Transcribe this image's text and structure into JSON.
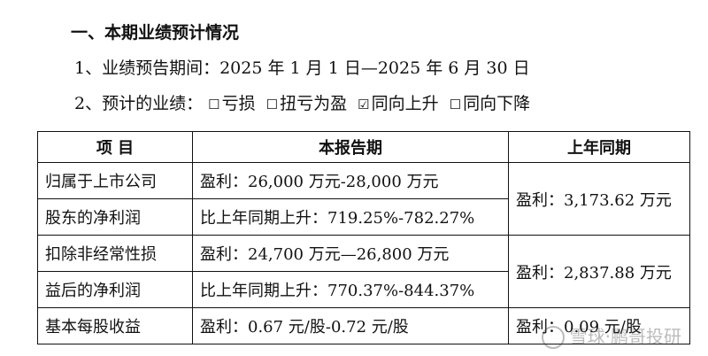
{
  "heading": "一、本期业绩预计情况",
  "period_line": "1、业绩预告期间：2025 年 1 月 1 日—2025 年 6 月 30 日",
  "forecast": {
    "prefix": "2、预计的业绩：",
    "options": [
      {
        "box": "☐",
        "label": "亏损"
      },
      {
        "box": "☐",
        "label": "扭亏为盈"
      },
      {
        "box": "☑",
        "label": "同向上升"
      },
      {
        "box": "☐",
        "label": "同向下降"
      }
    ]
  },
  "table": {
    "headers": [
      "项 目",
      "本报告期",
      "上年同期"
    ],
    "rows": [
      {
        "item": [
          "归属于上市公司",
          "股东的净利润"
        ],
        "current": [
          "盈利：26,000 万元-28,000 万元",
          "比上年同期上升：719.25%-782.27%"
        ],
        "prior": "盈利：3,173.62 万元"
      },
      {
        "item": [
          "扣除非经常性损",
          "益后的净利润"
        ],
        "current": [
          "盈利：24,700 万元—26,800 万元",
          "比上年同期上升：770.37%-844.37%"
        ],
        "prior": "盈利：2,837.88 万元"
      },
      {
        "item": [
          "基本每股收益"
        ],
        "current": [
          "盈利：0.67 元/股-0.72 元/股"
        ],
        "prior": "盈利：0.09 元/股"
      }
    ]
  },
  "watermark": "雪球·鹏哥投研"
}
